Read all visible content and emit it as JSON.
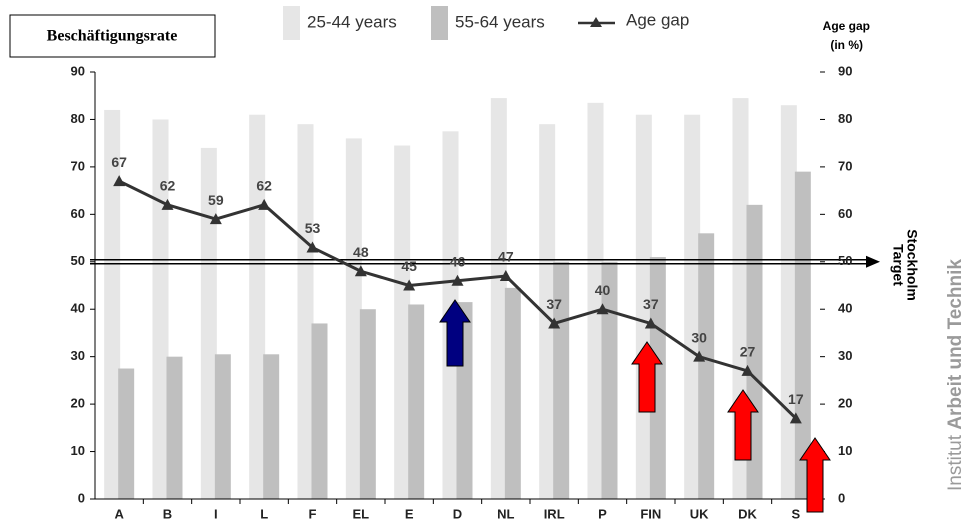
{
  "chart_data": {
    "type": "bar",
    "title": "Beschäftigungsrate",
    "categories": [
      "A",
      "B",
      "I",
      "L",
      "F",
      "EL",
      "E",
      "D",
      "NL",
      "IRL",
      "P",
      "FIN",
      "UK",
      "DK",
      "S"
    ],
    "series": [
      {
        "name": "25-44 years",
        "color": "#e6e6e6",
        "values": [
          82,
          80,
          74,
          81,
          79,
          76,
          74.5,
          77.5,
          84.5,
          79,
          83.5,
          81,
          81,
          84.5,
          83
        ]
      },
      {
        "name": "55-64 years",
        "color": "#bfbfbf",
        "values": [
          27.5,
          30,
          30.5,
          30.5,
          37,
          40,
          41,
          41.5,
          44.5,
          50,
          50,
          51,
          56,
          62,
          69
        ]
      },
      {
        "name": "Age gap",
        "type": "line",
        "axis": "y2",
        "color": "#333333",
        "values": [
          67,
          62,
          59,
          62,
          53,
          48,
          45,
          46,
          47,
          37,
          40,
          37,
          30,
          27,
          17
        ]
      }
    ],
    "ylim": [
      0,
      90
    ],
    "yticks": [
      0,
      10,
      20,
      30,
      40,
      50,
      60,
      70,
      80,
      90
    ],
    "y2lim": [
      0,
      90
    ],
    "y2ticks": [
      0,
      10,
      20,
      30,
      40,
      50,
      60,
      70,
      80,
      90
    ],
    "y2_label": [
      "Age gap",
      "(in %)"
    ],
    "target": {
      "value": 50,
      "label": [
        "Target",
        "Stockholm"
      ]
    },
    "watermark": [
      "Institut",
      "Arbeit und Technik"
    ]
  }
}
